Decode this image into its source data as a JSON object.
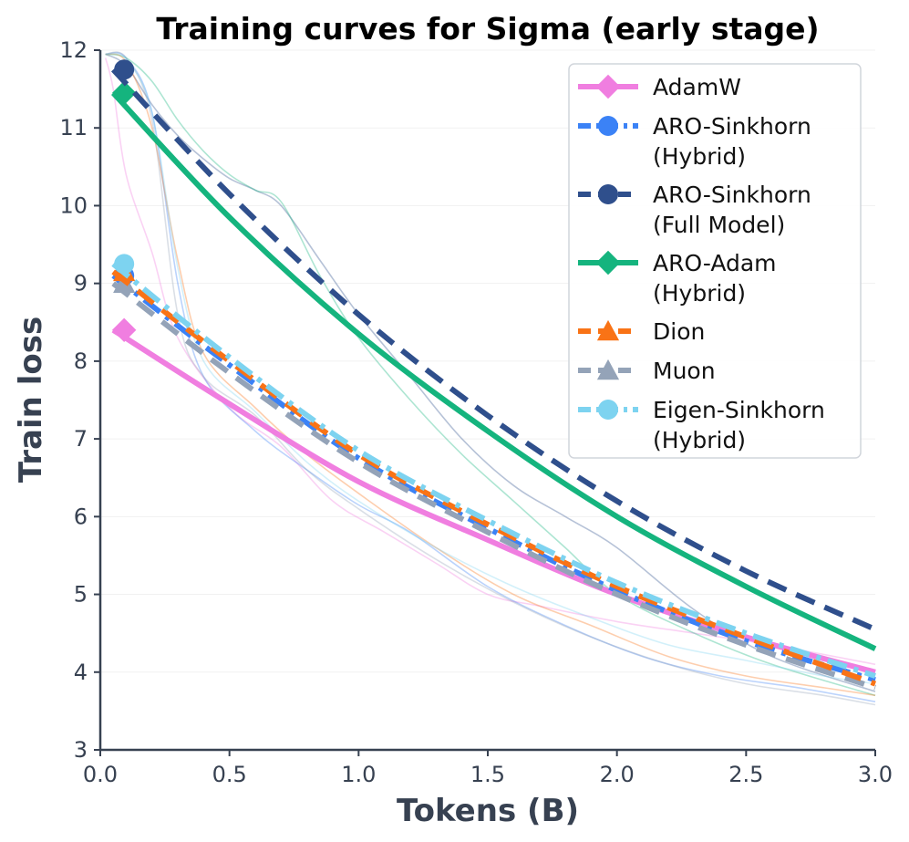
{
  "chart_data": {
    "type": "line",
    "title": "Training curves for Sigma (early stage)",
    "xlabel": "Tokens (B)",
    "ylabel": "Train loss",
    "xlim": [
      0,
      3.0
    ],
    "ylim": [
      3,
      12
    ],
    "xticks": [
      "0.0",
      "0.5",
      "1.0",
      "1.5",
      "2.0",
      "2.5",
      "3.0"
    ],
    "xtick_values": [
      0,
      0.5,
      1.0,
      1.5,
      2.0,
      2.5,
      3.0
    ],
    "yticks": [
      "3",
      "4",
      "5",
      "6",
      "7",
      "8",
      "9",
      "10",
      "11",
      "12"
    ],
    "ytick_values": [
      3,
      4,
      5,
      6,
      7,
      8,
      9,
      10,
      11,
      12
    ],
    "grid": "horizontal",
    "legend_position": "top-right",
    "series": [
      {
        "name": "AdamW",
        "legend_lines": [
          "AdamW"
        ],
        "color": "#f07ee0",
        "dash": "solid",
        "marker": "diamond",
        "x": [
          0.05,
          0.5,
          1.0,
          1.5,
          2.0,
          2.5,
          3.0
        ],
        "y": [
          8.4,
          7.45,
          6.45,
          5.7,
          5.0,
          4.45,
          4.0
        ]
      },
      {
        "name": "ARO-Sinkhorn (Hybrid)",
        "legend_lines": [
          "ARO-Sinkhorn",
          "(Hybrid)"
        ],
        "color": "#3b82f6",
        "dash": "dashdot",
        "marker": "circle",
        "x": [
          0.05,
          0.5,
          1.0,
          1.5,
          2.0,
          2.5,
          3.0
        ],
        "y": [
          9.1,
          7.95,
          6.75,
          5.85,
          5.05,
          4.4,
          3.9
        ]
      },
      {
        "name": "ARO-Sinkhorn (Full Model)",
        "legend_lines": [
          "ARO-Sinkhorn",
          "(Full Model)"
        ],
        "color": "#2f4f8c",
        "dash": "dashed",
        "marker": "circle",
        "x": [
          0.05,
          0.5,
          1.0,
          1.5,
          2.0,
          2.5,
          3.0
        ],
        "y": [
          11.75,
          10.15,
          8.6,
          7.3,
          6.2,
          5.3,
          4.55
        ]
      },
      {
        "name": "ARO-Adam (Hybrid)",
        "legend_lines": [
          "ARO-Adam",
          "(Hybrid)"
        ],
        "color": "#15b47e",
        "dash": "solid",
        "marker": "diamond",
        "x": [
          0.05,
          0.5,
          1.0,
          1.5,
          2.0,
          2.5,
          3.0
        ],
        "y": [
          11.45,
          9.85,
          8.35,
          7.1,
          6.0,
          5.1,
          4.3
        ]
      },
      {
        "name": "Dion",
        "legend_lines": [
          "Dion"
        ],
        "color": "#f97316",
        "dash": "dashed",
        "marker": "triangle",
        "x": [
          0.05,
          0.5,
          1.0,
          1.5,
          2.0,
          2.5,
          3.0
        ],
        "y": [
          9.15,
          8.0,
          6.8,
          5.9,
          5.1,
          4.45,
          3.85
        ]
      },
      {
        "name": "Muon",
        "legend_lines": [
          "Muon"
        ],
        "color": "#94a3b8",
        "dash": "dashed",
        "marker": "triangle",
        "x": [
          0.05,
          0.5,
          1.0,
          1.5,
          2.0,
          2.5,
          3.0
        ],
        "y": [
          9.0,
          7.85,
          6.7,
          5.8,
          5.0,
          4.35,
          3.8
        ]
      },
      {
        "name": "Eigen-Sinkhorn (Hybrid)",
        "legend_lines": [
          "Eigen-Sinkhorn",
          "(Hybrid)"
        ],
        "color": "#7dd3f0",
        "dash": "dashdot",
        "marker": "circle",
        "x": [
          0.05,
          0.5,
          1.0,
          1.5,
          2.0,
          2.5,
          3.0
        ],
        "y": [
          9.25,
          8.05,
          6.85,
          5.95,
          5.15,
          4.5,
          3.95
        ]
      }
    ],
    "raw_curves": [
      {
        "color": "#f07ee0",
        "x": [
          0.02,
          0.05,
          0.1,
          0.2,
          0.3,
          0.5,
          0.7,
          0.9,
          1.1,
          1.3,
          1.5,
          1.7,
          2.0,
          2.3,
          2.6,
          3.0
        ],
        "y": [
          11.9,
          11.5,
          10.4,
          9.4,
          8.3,
          7.4,
          6.9,
          6.2,
          5.8,
          5.4,
          5.0,
          4.85,
          4.65,
          4.5,
          4.35,
          4.1
        ]
      },
      {
        "color": "#3b82f6",
        "x": [
          0.02,
          0.1,
          0.2,
          0.3,
          0.4,
          0.6,
          0.8,
          1.0,
          1.2,
          1.5,
          1.8,
          2.1,
          2.4,
          2.7,
          3.0
        ],
        "y": [
          11.95,
          11.9,
          11.2,
          9.0,
          7.8,
          7.1,
          6.6,
          6.15,
          5.8,
          5.1,
          4.6,
          4.2,
          3.95,
          3.8,
          3.62
        ]
      },
      {
        "color": "#2f4f8c",
        "x": [
          0.02,
          0.1,
          0.2,
          0.3,
          0.4,
          0.5,
          0.6,
          0.7,
          0.85,
          1.0,
          1.2,
          1.4,
          1.6,
          1.8,
          2.0,
          2.3,
          2.6,
          3.0
        ],
        "y": [
          11.95,
          11.8,
          11.3,
          10.9,
          10.6,
          10.35,
          10.2,
          10.0,
          9.3,
          8.6,
          7.8,
          7.0,
          6.4,
          6.0,
          5.6,
          4.8,
          4.2,
          3.75
        ]
      },
      {
        "color": "#15b47e",
        "x": [
          0.02,
          0.1,
          0.2,
          0.3,
          0.4,
          0.5,
          0.6,
          0.7,
          0.85,
          1.0,
          1.2,
          1.4,
          1.6,
          1.8,
          2.0,
          2.3,
          2.6,
          3.0
        ],
        "y": [
          11.95,
          11.9,
          11.6,
          11.1,
          10.7,
          10.4,
          10.2,
          10.05,
          9.1,
          8.3,
          7.5,
          6.8,
          6.2,
          5.6,
          5.0,
          4.5,
          4.1,
          3.7
        ]
      },
      {
        "color": "#f97316",
        "x": [
          0.02,
          0.1,
          0.2,
          0.3,
          0.4,
          0.6,
          0.8,
          1.0,
          1.3,
          1.6,
          1.9,
          2.2,
          2.5,
          2.8,
          3.0
        ],
        "y": [
          11.95,
          11.85,
          11.0,
          9.3,
          8.1,
          7.4,
          6.8,
          6.3,
          5.6,
          5.0,
          4.6,
          4.2,
          3.95,
          3.8,
          3.7
        ]
      },
      {
        "color": "#94a3b8",
        "x": [
          0.02,
          0.1,
          0.2,
          0.3,
          0.4,
          0.6,
          0.8,
          1.0,
          1.3,
          1.6,
          1.9,
          2.2,
          2.5,
          2.8,
          3.0
        ],
        "y": [
          11.95,
          11.9,
          11.1,
          8.6,
          7.8,
          7.3,
          6.6,
          6.1,
          5.45,
          4.9,
          4.45,
          4.1,
          3.85,
          3.7,
          3.58
        ]
      },
      {
        "color": "#7dd3f0",
        "x": [
          0.02,
          0.1,
          0.2,
          0.3,
          0.4,
          0.6,
          0.8,
          1.0,
          1.3,
          1.6,
          1.9,
          2.2,
          2.5,
          2.8,
          3.0
        ],
        "y": [
          11.95,
          11.88,
          11.2,
          9.2,
          8.0,
          7.35,
          6.7,
          6.2,
          5.6,
          5.1,
          4.7,
          4.35,
          4.15,
          3.95,
          3.85
        ]
      }
    ]
  }
}
